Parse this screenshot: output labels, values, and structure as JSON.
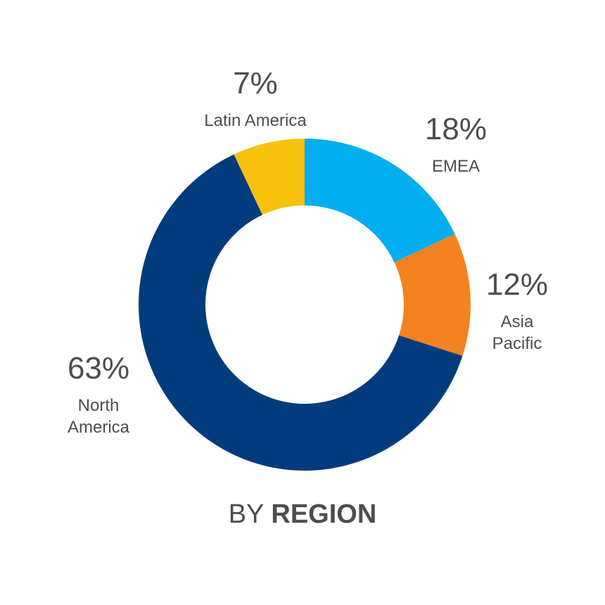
{
  "chart_data": {
    "type": "pie",
    "donut": true,
    "title": {
      "light": "BY",
      "bold": "REGION"
    },
    "slices": [
      {
        "label": [
          "EMEA"
        ],
        "value": 18,
        "display": "18%",
        "color": "#00AEEF"
      },
      {
        "label": [
          "Asia",
          "Pacific"
        ],
        "value": 12,
        "display": "12%",
        "color": "#F58220"
      },
      {
        "label": [
          "North",
          "America"
        ],
        "value": 63,
        "display": "63%",
        "color": "#003C7D"
      },
      {
        "label": [
          "Latin America"
        ],
        "value": 7,
        "display": "7%",
        "color": "#F7C10D"
      }
    ]
  }
}
